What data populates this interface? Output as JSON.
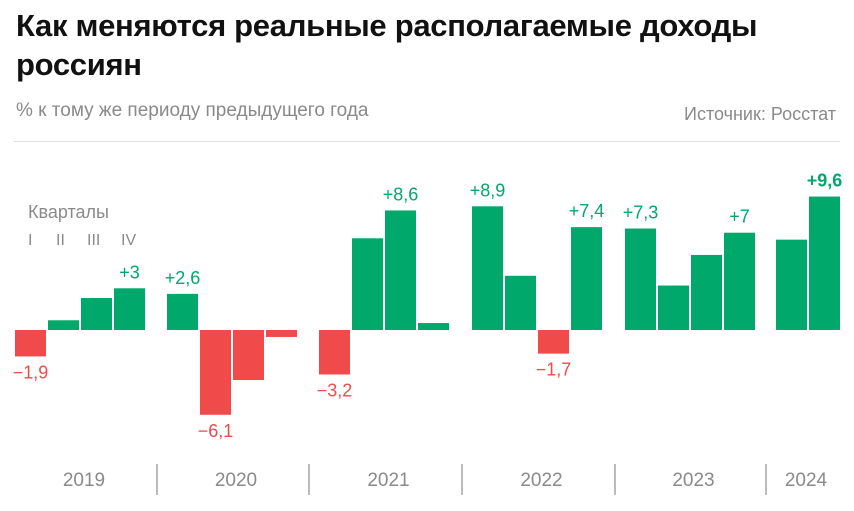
{
  "title": "Как меняются реальные располагаемые доходы россиян",
  "subtitle": "% к тому же периоду предыдущего года",
  "source": "Источник: Росстат",
  "legend": {
    "title": "Кварталы",
    "quarters": [
      "I",
      "II",
      "III",
      "IV"
    ]
  },
  "colors": {
    "positive": "#00a86b",
    "negative": "#f04a4a",
    "axis_text": "#8a8a8a"
  },
  "chart_data": {
    "type": "bar",
    "title": "Как меняются реальные располагаемые доходы россиян",
    "subtitle": "% к тому же периоду предыдущего года",
    "ylabel": "% к тому же периоду предыдущего года",
    "ylim": [
      -7,
      10.5
    ],
    "grid": false,
    "legend": "top-left",
    "years": [
      {
        "year": "2019",
        "values": [
          -1.9,
          0.7,
          2.3,
          3.0
        ],
        "labels": [
          "−1,9",
          "",
          "",
          "+3"
        ]
      },
      {
        "year": "2020",
        "values": [
          2.6,
          -6.1,
          -3.6,
          -0.5
        ],
        "labels": [
          "+2,6",
          "−6,1",
          "",
          ""
        ]
      },
      {
        "year": "2021",
        "values": [
          -3.2,
          6.6,
          8.6,
          0.5
        ],
        "labels": [
          "−3,2",
          "",
          "+8,6",
          ""
        ]
      },
      {
        "year": "2022",
        "values": [
          8.9,
          3.9,
          -1.7,
          7.4
        ],
        "labels": [
          "+8,9",
          "",
          "−1,7",
          "+7,4"
        ]
      },
      {
        "year": "2023",
        "values": [
          7.3,
          3.2,
          5.4,
          7.0
        ],
        "labels": [
          "+7,3",
          "",
          "",
          "+7"
        ]
      },
      {
        "year": "2024",
        "values": [
          6.5,
          9.6
        ],
        "labels": [
          "",
          "+9,6"
        ]
      }
    ]
  }
}
